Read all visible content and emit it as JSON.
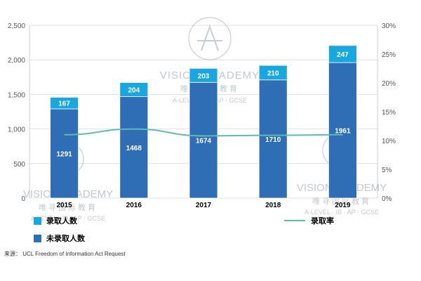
{
  "colors": {
    "admitted": "#1aa7e0",
    "not_admitted": "#2f6db5",
    "rate_line": "#5bbcb0",
    "grid": "#d9d9d9",
    "watermark": "#9aa8b3"
  },
  "legend": {
    "admitted_label": "录取人数",
    "not_admitted_label": "未录取人数",
    "rate_label": "录取率"
  },
  "source": "来源： UCL Freedom of Information Act Request",
  "watermark": {
    "brand": "VISION ACADEMY",
    "chinese": "唯寻国际教育",
    "tagline": "A-LEVEL · IB · AP · GCSE"
  },
  "chart_data": {
    "type": "bar",
    "stacked": true,
    "categories": [
      "2015",
      "2016",
      "2017",
      "2018",
      "2019"
    ],
    "series": [
      {
        "name": "未录取人数",
        "values": [
          1291,
          1468,
          1674,
          1710,
          1961
        ]
      },
      {
        "name": "录取人数",
        "values": [
          167,
          204,
          203,
          210,
          247
        ]
      }
    ],
    "line_series": {
      "name": "录取率",
      "axis": "right",
      "values": [
        11.0,
        12.0,
        10.8,
        10.9,
        11.0
      ]
    },
    "ylim": [
      0,
      2500
    ],
    "yticks": [
      "0",
      "500",
      "1,000",
      "1,500",
      "2,000",
      "2,500"
    ],
    "y2lim": [
      0,
      30
    ],
    "y2ticks": [
      "0%",
      "5%",
      "10%",
      "15%",
      "20%",
      "25%",
      "30%"
    ],
    "grid": true,
    "legend_position": "bottom"
  }
}
